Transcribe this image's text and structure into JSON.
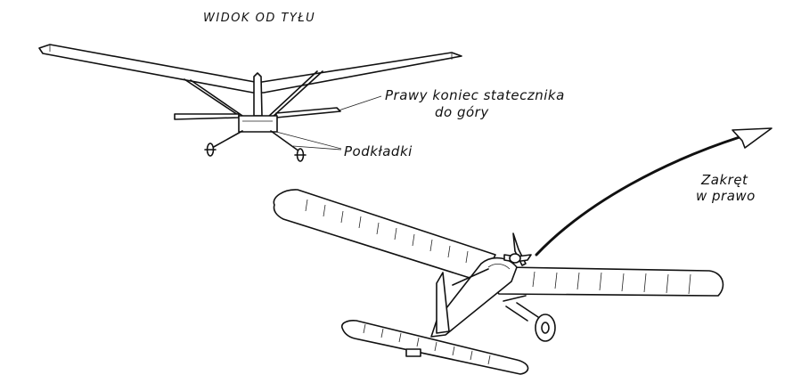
{
  "labels": {
    "rear_view": "WIDOK OD TYŁU",
    "stabilizer_line1": "Prawy koniec statecznika",
    "stabilizer_line2": "do góry",
    "shims": "Podkładki",
    "turn_line1": "Zakręt",
    "turn_line2": "w prawo"
  }
}
